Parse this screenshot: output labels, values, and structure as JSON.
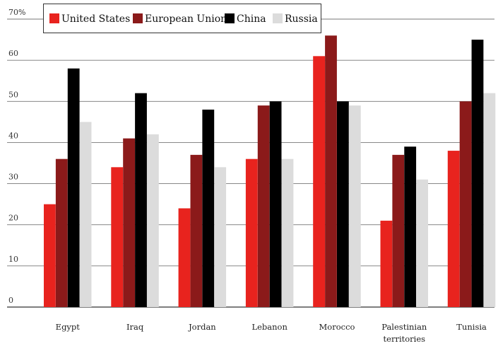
{
  "chart_data": {
    "type": "bar",
    "categories": [
      "Egypt",
      "Iraq",
      "Jordan",
      "Lebanon",
      "Morocco",
      "Palestinian territories",
      "Tunisia"
    ],
    "category_lines": [
      [
        "Egypt"
      ],
      [
        "Iraq"
      ],
      [
        "Jordan"
      ],
      [
        "Lebanon"
      ],
      [
        "Morocco"
      ],
      [
        "Palestinian",
        "territories"
      ],
      [
        "Tunisia"
      ]
    ],
    "series": [
      {
        "name": "United States",
        "color": "#e8231e",
        "values": [
          25,
          34,
          24,
          36,
          61,
          21,
          38
        ]
      },
      {
        "name": "European Union",
        "color": "#8b1a1a",
        "values": [
          36,
          41,
          37,
          49,
          66,
          37,
          50
        ]
      },
      {
        "name": "China",
        "color": "#000000",
        "values": [
          58,
          52,
          48,
          50,
          50,
          39,
          65
        ]
      },
      {
        "name": "Russia",
        "color": "#dcdcdc",
        "values": [
          45,
          42,
          34,
          36,
          49,
          31,
          52
        ]
      }
    ],
    "ylim": [
      0,
      70
    ],
    "yticks": [
      0,
      10,
      20,
      30,
      40,
      50,
      60,
      70
    ],
    "ytick_labels": [
      "0",
      "10",
      "20",
      "30",
      "40",
      "50",
      "60",
      "70%"
    ],
    "grid": true,
    "legend_position": "top-left",
    "title": "",
    "xlabel": "",
    "ylabel": ""
  }
}
